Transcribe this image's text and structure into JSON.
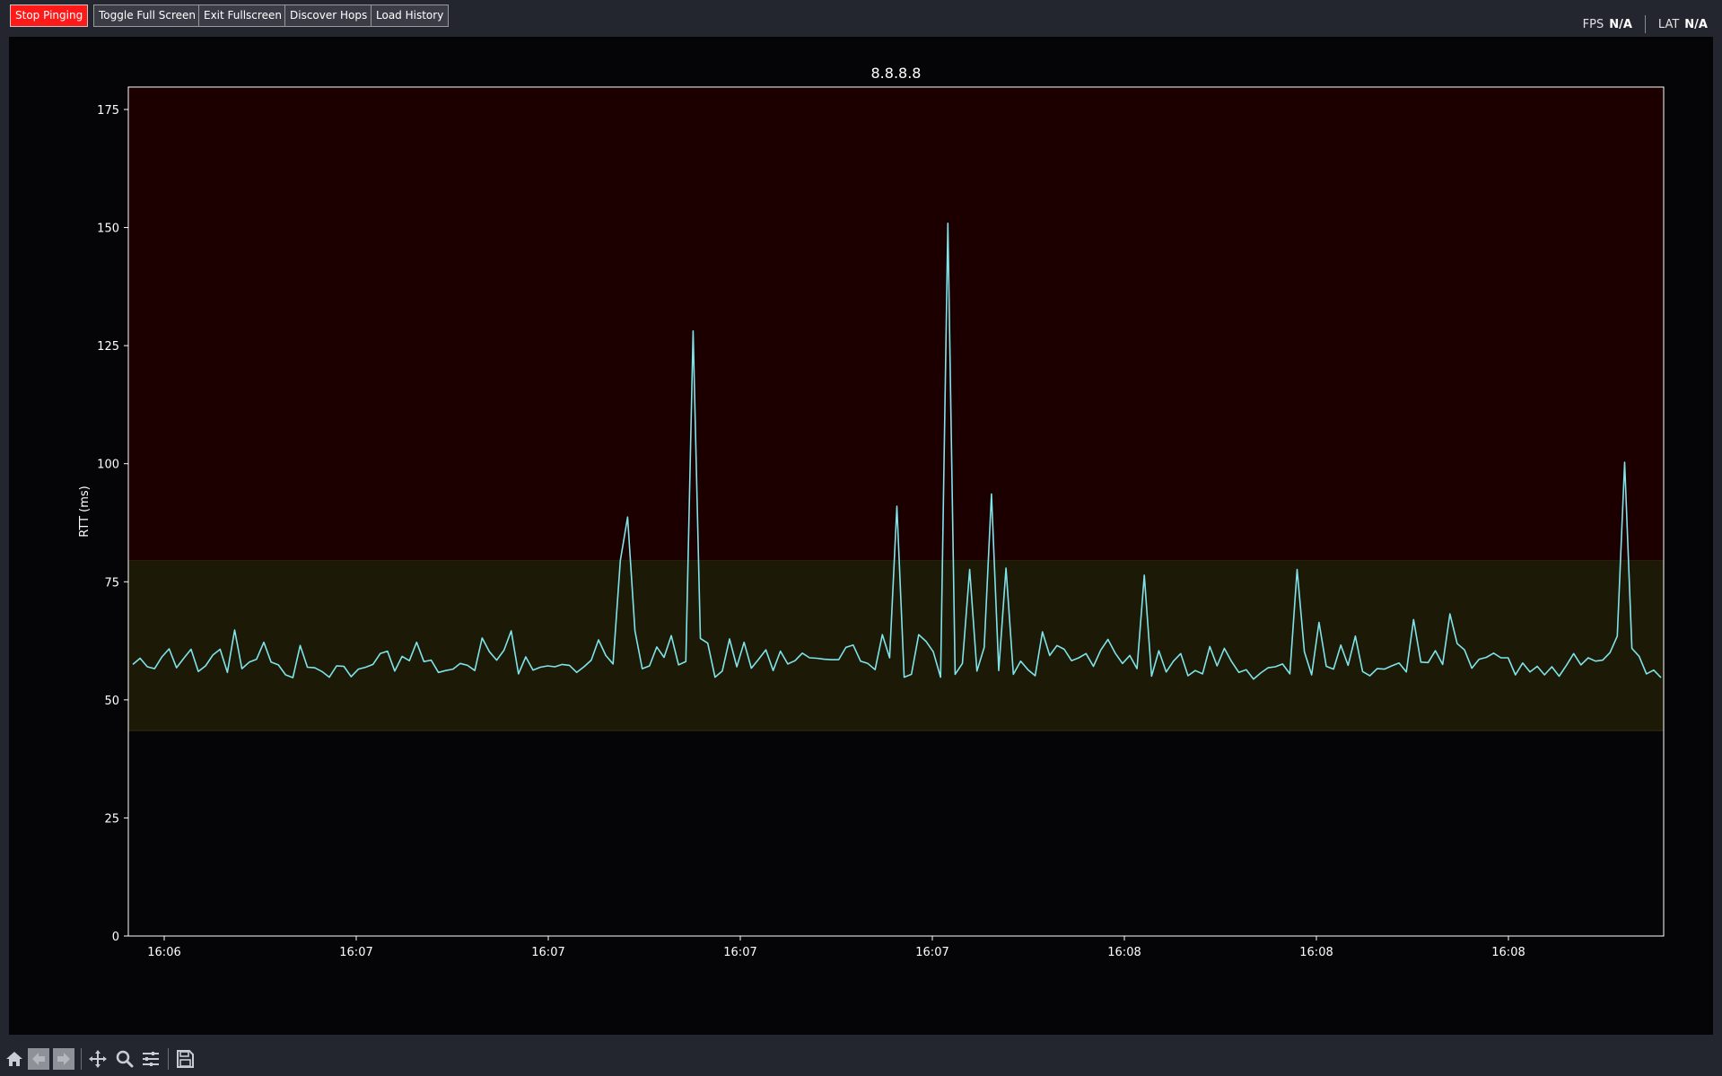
{
  "toolbar_top": {
    "buttons": [
      {
        "label": "Stop Pinging",
        "name": "stop-pinging-button"
      },
      {
        "label": "Toggle Full Screen",
        "name": "toggle-full-screen-button"
      },
      {
        "label": "Exit Fullscreen",
        "name": "exit-fullscreen-button"
      },
      {
        "label": "Discover Hops",
        "name": "discover-hops-button"
      },
      {
        "label": "Load History",
        "name": "load-history-button"
      }
    ],
    "stop_color": "#ff1a1a"
  },
  "status": {
    "fps_label": "FPS",
    "fps_value": "N/A",
    "lat_label": "LAT",
    "lat_value": "N/A"
  },
  "chart_data": {
    "type": "line",
    "title": "8.8.8.8",
    "xlabel": "",
    "ylabel": "RTT (ms)",
    "ylim": [
      0,
      175
    ],
    "yticks": [
      0,
      25,
      50,
      75,
      100,
      125,
      150,
      175
    ],
    "xtick_labels": [
      "16:06",
      "16:07",
      "16:07",
      "16:07",
      "16:07",
      "16:08",
      "16:08",
      "16:08"
    ],
    "grid": false,
    "bands": [
      {
        "from": 79.5,
        "to": 175,
        "color": "#1c0000",
        "meaning": "high"
      },
      {
        "from": 43.5,
        "to": 79.5,
        "color": "#1c1a07",
        "meaning": "normal"
      }
    ],
    "line_color": "#7fe3ea",
    "series": [
      {
        "values": [
          57.5,
          58.8,
          57,
          56.6,
          59.1,
          60.8,
          56.8,
          58.8,
          60.7,
          56,
          57.2,
          59.5,
          60.7,
          55.8,
          64.8,
          56.6,
          58,
          58.6,
          62.2,
          58,
          57.4,
          55.3,
          54.7,
          61.5,
          56.9,
          56.8,
          56,
          54.8,
          57.2,
          57.1,
          54.9,
          56.5,
          56.9,
          57.5,
          59.8,
          60.3,
          56.1,
          59.2,
          58.3,
          62.2,
          58.1,
          58.4,
          55.8,
          56.2,
          56.5,
          57.7,
          57.3,
          56.2,
          63.1,
          60.2,
          58.4,
          60.5,
          64.6,
          55.5,
          59.1,
          56.3,
          56.9,
          57.2,
          57,
          57.5,
          57.3,
          55.8,
          57,
          58.4,
          62.7,
          59.4,
          57.6,
          79.5,
          88.7,
          64.6,
          56.6,
          57.2,
          61.2,
          59,
          63.6,
          57.4,
          58.1,
          128.1,
          63,
          62,
          54.8,
          56.1,
          62.9,
          57,
          62.2,
          56.7,
          58.6,
          60.6,
          56.2,
          60.3,
          57.6,
          58.3,
          59.9,
          58.9,
          58.8,
          58.6,
          58.5,
          58.5,
          61.1,
          61.6,
          58.2,
          57.7,
          56.4,
          63.8,
          58.9,
          91,
          54.8,
          55.4,
          63.8,
          62.4,
          60.2,
          54.8,
          150.9,
          55.4,
          57.7,
          77.6,
          56.1,
          61.1,
          93.6,
          56.2,
          77.9,
          55.4,
          58.2,
          56.4,
          55.1,
          64.4,
          59.4,
          61.5,
          60.7,
          58.3,
          58.9,
          59.8,
          57.1,
          60.5,
          62.8,
          59.9,
          57.7,
          59.4,
          56.6,
          76.4,
          55,
          60.4,
          55.9,
          58.2,
          59.8,
          55.1,
          56.2,
          55.5,
          61.3,
          57.2,
          60.9,
          58.1,
          55.8,
          56.4,
          54.4,
          55.7,
          56.8,
          57,
          57.6,
          55.5,
          77.6,
          60.2,
          55.3,
          66.4,
          57.1,
          56.5,
          61.6,
          57.3,
          63.5,
          56,
          55.1,
          56.6,
          56.5,
          57.2,
          57.8,
          55.9,
          67,
          58,
          57.9,
          60.4,
          57.5,
          68.2,
          61.9,
          60.6,
          56.7,
          58.6,
          59,
          59.9,
          58.9,
          58.9,
          55.3,
          57.8,
          55.9,
          57.1,
          55.3,
          57,
          55,
          57.3,
          59.8,
          57.4,
          58.9,
          58.2,
          58.4,
          60,
          63.5,
          100.3,
          60.9,
          59.2,
          55.5,
          56.3,
          54.7
        ]
      }
    ]
  },
  "bottom_toolbar": {
    "icons": [
      "home-icon",
      "back-arrow-icon",
      "forward-arrow-icon",
      "pan-move-icon",
      "zoom-magnifier-icon",
      "configure-subplots-icon",
      "save-disk-icon"
    ]
  }
}
